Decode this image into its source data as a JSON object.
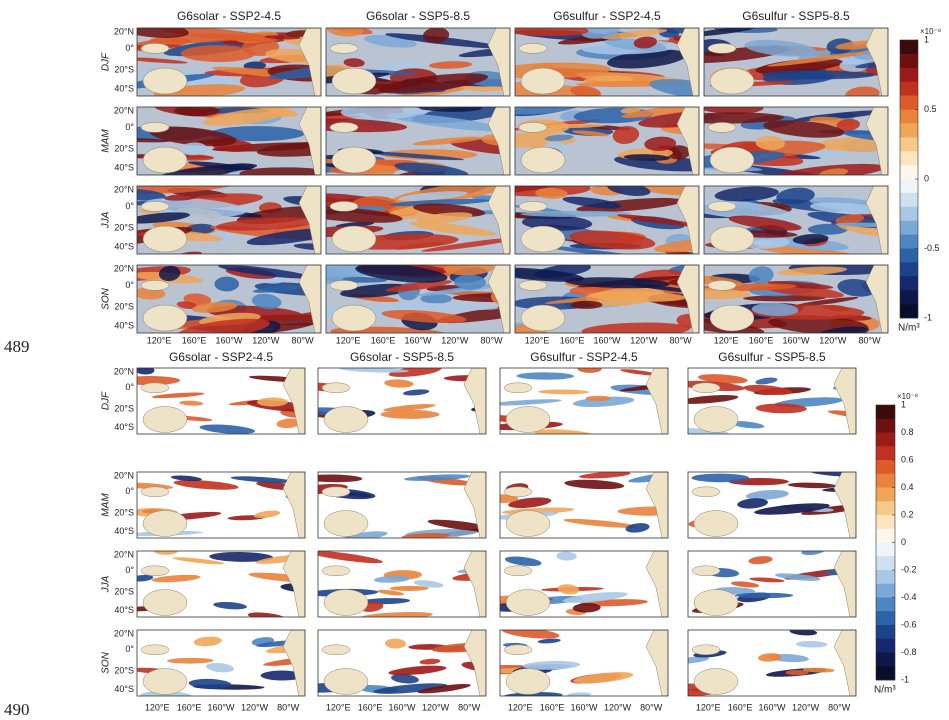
{
  "line_numbers": [
    "489",
    "490"
  ],
  "figures": [
    {
      "column_titles": [
        "G6solar - SSP2-4.5",
        "G6solar - SSP5-8.5",
        "G6sulfur - SSP2-4.5",
        "G6sulfur - SSP5-8.5"
      ],
      "row_labels": [
        "DJF",
        "MAM",
        "JJA",
        "SON"
      ],
      "lat_labels": [
        "20°N",
        "0°",
        "20°S",
        "40°S"
      ],
      "lon_labels": [
        "120°E",
        "160°E",
        "160°W",
        "120°W",
        "80°W"
      ],
      "colorbar": {
        "scale": "×10⁻⁸",
        "ticks": [
          "1",
          "0.5",
          "0",
          "-0.5",
          "-1"
        ],
        "unit": "N/m³"
      }
    },
    {
      "column_titles": [
        "G6solar - SSP2-4.5",
        "G6solar - SSP5-8.5",
        "G6sulfur - SSP2-4.5",
        "G6sulfur - SSP5-8.5"
      ],
      "row_labels": [
        "DJF",
        "MAM",
        "JJA",
        "SON"
      ],
      "lat_labels": [
        "20°N",
        "0°",
        "20°S",
        "40°S"
      ],
      "lon_labels": [
        "120°E",
        "160°E",
        "160°W",
        "120°W",
        "80°W"
      ],
      "colorbar": {
        "scale": "×10⁻⁸",
        "ticks": [
          "1",
          "0.8",
          "0.6",
          "0.4",
          "0.2",
          "0",
          "-0.2",
          "-0.4",
          "-0.6",
          "-0.8",
          "-1"
        ],
        "unit": "N/m³"
      }
    }
  ]
}
